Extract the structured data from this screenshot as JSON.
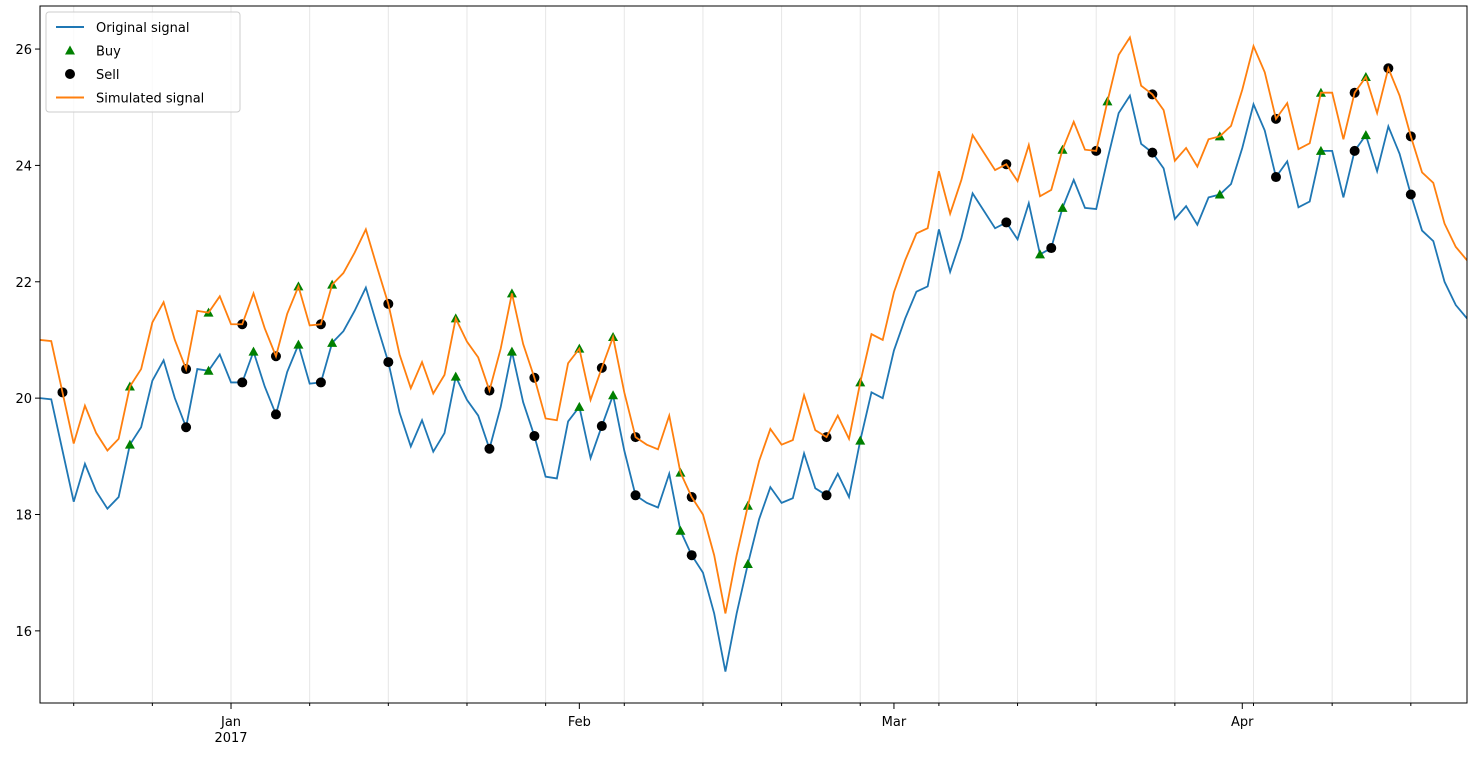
{
  "chart_data": {
    "type": "line",
    "x": [
      "2016-12-15",
      "2016-12-16",
      "2016-12-17",
      "2016-12-18",
      "2016-12-19",
      "2016-12-20",
      "2016-12-21",
      "2016-12-22",
      "2016-12-23",
      "2016-12-24",
      "2016-12-25",
      "2016-12-26",
      "2016-12-27",
      "2016-12-28",
      "2016-12-29",
      "2016-12-30",
      "2016-12-31",
      "2017-01-01",
      "2017-01-02",
      "2017-01-03",
      "2017-01-04",
      "2017-01-05",
      "2017-01-06",
      "2017-01-07",
      "2017-01-08",
      "2017-01-09",
      "2017-01-10",
      "2017-01-11",
      "2017-01-12",
      "2017-01-13",
      "2017-01-14",
      "2017-01-15",
      "2017-01-16",
      "2017-01-17",
      "2017-01-18",
      "2017-01-19",
      "2017-01-20",
      "2017-01-21",
      "2017-01-22",
      "2017-01-23",
      "2017-01-24",
      "2017-01-25",
      "2017-01-26",
      "2017-01-27",
      "2017-01-28",
      "2017-01-29",
      "2017-01-30",
      "2017-01-31",
      "2017-02-01",
      "2017-02-02",
      "2017-02-03",
      "2017-02-04",
      "2017-02-05",
      "2017-02-06",
      "2017-02-07",
      "2017-02-08",
      "2017-02-09",
      "2017-02-10",
      "2017-02-11",
      "2017-02-12",
      "2017-02-13",
      "2017-02-14",
      "2017-02-15",
      "2017-02-16",
      "2017-02-17",
      "2017-02-18",
      "2017-02-19",
      "2017-02-20",
      "2017-02-21",
      "2017-02-22",
      "2017-02-23",
      "2017-02-24",
      "2017-02-25",
      "2017-02-26",
      "2017-02-27",
      "2017-02-28",
      "2017-03-01",
      "2017-03-02",
      "2017-03-03",
      "2017-03-04",
      "2017-03-05",
      "2017-03-06",
      "2017-03-07",
      "2017-03-08",
      "2017-03-09",
      "2017-03-10",
      "2017-03-11",
      "2017-03-12",
      "2017-03-13",
      "2017-03-14",
      "2017-03-15",
      "2017-03-16",
      "2017-03-17",
      "2017-03-18",
      "2017-03-19",
      "2017-03-20",
      "2017-03-21",
      "2017-03-22",
      "2017-03-23",
      "2017-03-24",
      "2017-03-25",
      "2017-03-26",
      "2017-03-27",
      "2017-03-28",
      "2017-03-29",
      "2017-03-30",
      "2017-03-31",
      "2017-04-01",
      "2017-04-02",
      "2017-04-03",
      "2017-04-04",
      "2017-04-05",
      "2017-04-06",
      "2017-04-07",
      "2017-04-08",
      "2017-04-09",
      "2017-04-10",
      "2017-04-11",
      "2017-04-12",
      "2017-04-13",
      "2017-04-14",
      "2017-04-15",
      "2017-04-16",
      "2017-04-17",
      "2017-04-18",
      "2017-04-19",
      "2017-04-20",
      "2017-04-21"
    ],
    "series": [
      {
        "name": "Original signal",
        "color": "#1f77b4",
        "values": [
          20.0,
          19.98,
          19.1,
          18.22,
          18.87,
          18.4,
          18.1,
          18.3,
          19.2,
          19.5,
          20.3,
          20.65,
          20.0,
          19.5,
          20.5,
          20.47,
          20.75,
          20.27,
          20.27,
          20.8,
          20.2,
          19.72,
          20.45,
          20.92,
          20.25,
          20.27,
          20.95,
          21.15,
          21.5,
          21.9,
          21.25,
          20.62,
          19.75,
          19.17,
          19.62,
          19.08,
          19.4,
          20.37,
          19.97,
          19.7,
          19.13,
          19.85,
          20.8,
          19.93,
          19.35,
          18.65,
          18.62,
          19.6,
          19.85,
          18.97,
          19.52,
          20.05,
          19.1,
          18.33,
          18.2,
          18.12,
          18.7,
          17.72,
          17.3,
          17.0,
          16.3,
          15.3,
          16.3,
          17.15,
          17.92,
          18.47,
          18.2,
          18.28,
          19.05,
          18.45,
          18.33,
          18.7,
          18.3,
          19.27,
          20.1,
          20.0,
          20.82,
          21.37,
          21.83,
          21.92,
          22.9,
          22.17,
          22.75,
          23.52,
          23.22,
          22.92,
          23.02,
          22.73,
          23.35,
          22.47,
          22.58,
          23.27,
          23.75,
          23.27,
          23.25,
          24.1,
          24.9,
          25.2,
          24.37,
          24.22,
          23.95,
          23.08,
          23.3,
          22.98,
          23.45,
          23.5,
          23.68,
          24.3,
          25.05,
          24.6,
          23.8,
          24.07,
          23.28,
          23.38,
          24.25,
          24.25,
          23.45,
          24.25,
          24.52,
          23.9,
          24.67,
          24.2,
          23.5,
          22.88,
          22.7,
          22.0,
          21.6,
          21.37
        ]
      },
      {
        "name": "Buy",
        "color": "green",
        "marker": "triangle",
        "x": [
          "2016-12-23",
          "2016-12-23",
          "2016-12-30",
          "2016-12-30",
          "2017-01-03",
          "2017-01-07",
          "2017-01-07",
          "2017-01-10",
          "2017-01-10",
          "2017-01-21",
          "2017-01-21",
          "2017-01-26",
          "2017-01-26",
          "2017-02-01",
          "2017-02-01",
          "2017-02-04",
          "2017-02-04",
          "2017-02-10",
          "2017-02-10",
          "2017-02-16",
          "2017-02-16",
          "2017-02-26",
          "2017-02-26",
          "2017-03-14",
          "2017-03-16",
          "2017-03-16",
          "2017-03-20",
          "2017-03-30",
          "2017-03-30",
          "2017-04-08",
          "2017-04-08",
          "2017-04-12",
          "2017-04-12"
        ],
        "values": [
          20.2,
          19.2,
          21.47,
          20.47,
          20.8,
          21.92,
          20.92,
          21.95,
          20.95,
          21.37,
          20.37,
          21.8,
          20.8,
          20.85,
          19.85,
          21.05,
          20.05,
          18.72,
          17.72,
          18.15,
          17.15,
          20.27,
          19.27,
          22.47,
          24.27,
          23.27,
          25.1,
          24.5,
          23.5,
          25.25,
          24.25,
          25.52,
          24.52
        ]
      },
      {
        "name": "Sell",
        "color": "black",
        "marker": "circle",
        "x": [
          "2016-12-17",
          "2016-12-28",
          "2016-12-28",
          "2017-01-02",
          "2017-01-02",
          "2017-01-05",
          "2017-01-05",
          "2017-01-09",
          "2017-01-09",
          "2017-01-15",
          "2017-01-15",
          "2017-01-24",
          "2017-01-24",
          "2017-01-28",
          "2017-01-28",
          "2017-02-03",
          "2017-02-03",
          "2017-02-06",
          "2017-02-06",
          "2017-02-11",
          "2017-02-11",
          "2017-02-23",
          "2017-02-23",
          "2017-03-11",
          "2017-03-11",
          "2017-03-15",
          "2017-03-19",
          "2017-03-24",
          "2017-03-24",
          "2017-04-04",
          "2017-04-04",
          "2017-04-11",
          "2017-04-11",
          "2017-04-14",
          "2017-04-16",
          "2017-04-16"
        ],
        "values": [
          20.1,
          20.5,
          19.5,
          21.27,
          20.27,
          20.72,
          19.72,
          21.27,
          20.27,
          21.62,
          20.62,
          20.13,
          19.13,
          20.35,
          19.35,
          20.52,
          19.52,
          19.33,
          18.33,
          18.3,
          17.3,
          19.33,
          18.33,
          24.02,
          23.02,
          22.58,
          24.25,
          25.22,
          24.22,
          24.8,
          23.8,
          25.25,
          24.25,
          25.67,
          24.5,
          23.5
        ]
      },
      {
        "name": "Simulated signal",
        "color": "#ff7f0e",
        "values": [
          21.0,
          20.98,
          20.1,
          19.22,
          19.87,
          19.4,
          19.1,
          19.3,
          20.2,
          20.5,
          21.3,
          21.65,
          21.0,
          20.5,
          21.5,
          21.47,
          21.75,
          21.27,
          21.27,
          21.8,
          21.2,
          20.72,
          21.45,
          21.92,
          21.25,
          21.27,
          21.95,
          22.15,
          22.5,
          22.9,
          22.25,
          21.62,
          20.75,
          20.17,
          20.62,
          20.08,
          20.4,
          21.37,
          20.97,
          20.7,
          20.13,
          20.85,
          21.8,
          20.93,
          20.35,
          19.65,
          19.62,
          20.6,
          20.85,
          19.97,
          20.52,
          21.05,
          20.1,
          19.33,
          19.2,
          19.12,
          19.7,
          18.72,
          18.3,
          18.0,
          17.3,
          16.3,
          17.3,
          18.15,
          18.92,
          19.47,
          19.2,
          19.28,
          20.05,
          19.45,
          19.33,
          19.7,
          19.3,
          20.27,
          21.1,
          21.0,
          21.82,
          22.37,
          22.83,
          22.92,
          23.9,
          23.17,
          23.75,
          24.52,
          24.22,
          23.92,
          24.02,
          23.73,
          24.35,
          23.47,
          23.58,
          24.27,
          24.75,
          24.27,
          24.25,
          25.1,
          25.9,
          26.2,
          25.37,
          25.22,
          24.95,
          24.08,
          24.3,
          23.98,
          24.45,
          24.5,
          24.68,
          25.3,
          26.05,
          25.6,
          24.8,
          25.07,
          24.28,
          24.38,
          25.25,
          25.25,
          24.45,
          25.25,
          25.52,
          24.9,
          25.67,
          25.2,
          24.5,
          23.88,
          23.7,
          23.0,
          22.6,
          22.37
        ]
      }
    ],
    "xlim": [
      "2016-12-15",
      "2017-04-21"
    ],
    "xticks": [
      {
        "value": "2017-01-01",
        "label": "Jan\n2017"
      },
      {
        "value": "2017-02-01",
        "label": "Feb"
      },
      {
        "value": "2017-03-01",
        "label": "Mar"
      },
      {
        "value": "2017-04-01",
        "label": "Apr"
      }
    ],
    "xminorticks": [
      "2016-12-18",
      "2016-12-25",
      "2017-01-01",
      "2017-01-08",
      "2017-01-15",
      "2017-01-22",
      "2017-01-29",
      "2017-02-05",
      "2017-02-12",
      "2017-02-19",
      "2017-02-26",
      "2017-03-05",
      "2017-03-12",
      "2017-03-19",
      "2017-03-26",
      "2017-04-02",
      "2017-04-09",
      "2017-04-16"
    ],
    "ylim": [
      14.76,
      26.74
    ],
    "yticks": [
      16,
      18,
      20,
      22,
      24,
      26
    ],
    "grid": "x-minor",
    "legend": "upper left"
  }
}
